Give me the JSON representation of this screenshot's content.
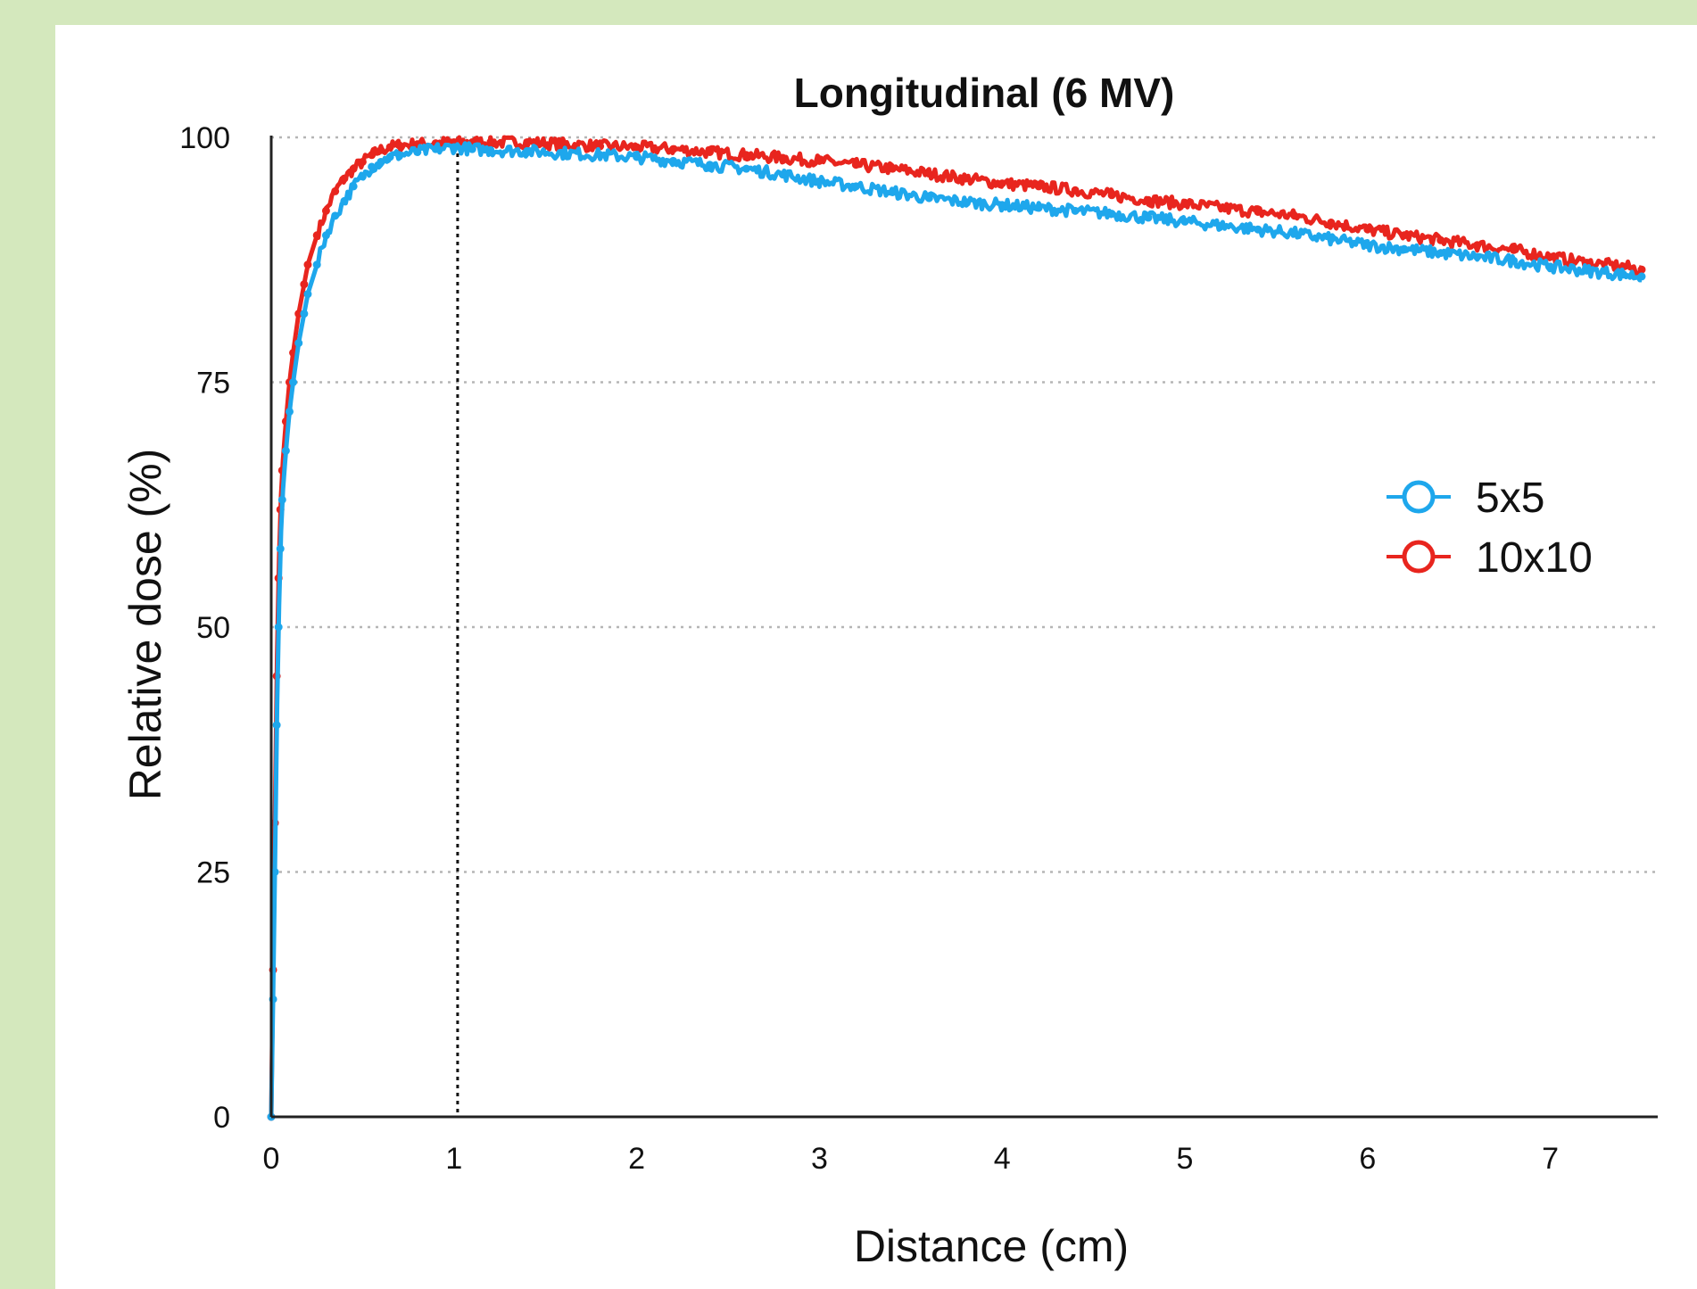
{
  "chart_data": {
    "type": "scatter",
    "title": "Longitudinal (6 MV)",
    "xlabel": "Distance (cm)",
    "ylabel": "Relative dose (%)",
    "xlim": [
      0,
      7.5
    ],
    "ylim": [
      0,
      100
    ],
    "xticks": [
      "0",
      "1",
      "2",
      "3",
      "4",
      "5",
      "6",
      "7"
    ],
    "yticks": [
      "0",
      "25",
      "50",
      "75",
      "100"
    ],
    "grid": "horizontal dotted",
    "reference_line_x": 1.02,
    "legend_position": "right",
    "series": [
      {
        "name": "5x5",
        "color": "#1ea7ec",
        "x": [
          0.0,
          0.01,
          0.02,
          0.03,
          0.04,
          0.05,
          0.06,
          0.08,
          0.1,
          0.12,
          0.15,
          0.18,
          0.2,
          0.25,
          0.3,
          0.35,
          0.4,
          0.45,
          0.5,
          0.55,
          0.6,
          0.65,
          0.7,
          0.8,
          0.9,
          1.0,
          1.1,
          1.2,
          1.4,
          1.6,
          1.8,
          2.0,
          2.2,
          2.4,
          2.6,
          2.8,
          3.0,
          3.2,
          3.4,
          3.6,
          3.8,
          4.0,
          4.2,
          4.4,
          4.6,
          4.8,
          5.0,
          5.2,
          5.4,
          5.6,
          5.8,
          6.0,
          6.2,
          6.4,
          6.6,
          6.8,
          7.0,
          7.2,
          7.4,
          7.5
        ],
        "y": [
          0,
          12,
          25,
          40,
          50,
          58,
          63,
          68,
          72,
          75,
          79,
          82,
          84,
          87,
          90,
          92,
          93.5,
          95,
          96,
          97,
          97.5,
          98,
          98.2,
          98.5,
          98.8,
          99,
          98.8,
          98.7,
          98.6,
          98.4,
          98.2,
          98,
          97.6,
          97.2,
          96.8,
          96.2,
          95.5,
          95,
          94.4,
          93.8,
          93.4,
          93.1,
          92.8,
          92.5,
          92.2,
          91.8,
          91.4,
          91,
          90.6,
          90.2,
          89.6,
          89,
          88.6,
          88.2,
          87.8,
          87.4,
          86.8,
          86.4,
          86,
          85.8
        ]
      },
      {
        "name": "10x10",
        "color": "#e8251e",
        "x": [
          0.0,
          0.01,
          0.02,
          0.03,
          0.04,
          0.05,
          0.06,
          0.08,
          0.1,
          0.12,
          0.15,
          0.18,
          0.2,
          0.25,
          0.3,
          0.35,
          0.4,
          0.45,
          0.5,
          0.55,
          0.6,
          0.65,
          0.7,
          0.8,
          0.9,
          1.0,
          1.1,
          1.2,
          1.4,
          1.6,
          1.8,
          2.0,
          2.2,
          2.4,
          2.6,
          2.8,
          3.0,
          3.2,
          3.4,
          3.6,
          3.8,
          4.0,
          4.2,
          4.4,
          4.6,
          4.8,
          5.0,
          5.2,
          5.4,
          5.6,
          5.8,
          6.0,
          6.2,
          6.4,
          6.6,
          6.8,
          7.0,
          7.2,
          7.4,
          7.5
        ],
        "y": [
          0,
          15,
          30,
          45,
          55,
          62,
          66,
          71,
          75,
          78,
          82,
          85,
          87,
          90,
          92.5,
          94.5,
          95.8,
          96.8,
          97.5,
          98.2,
          98.7,
          99,
          99.2,
          99.3,
          99.4,
          99.5,
          99.5,
          99.5,
          99.5,
          99.3,
          99.1,
          99,
          98.8,
          98.5,
          98.2,
          97.9,
          97.6,
          97.2,
          96.8,
          96.3,
          95.8,
          95.3,
          95,
          94.6,
          94.1,
          93.6,
          93.2,
          92.8,
          92.4,
          92,
          91.3,
          90.6,
          90,
          89.5,
          89,
          88.5,
          87.8,
          87.2,
          86.8,
          86.5
        ]
      }
    ]
  }
}
